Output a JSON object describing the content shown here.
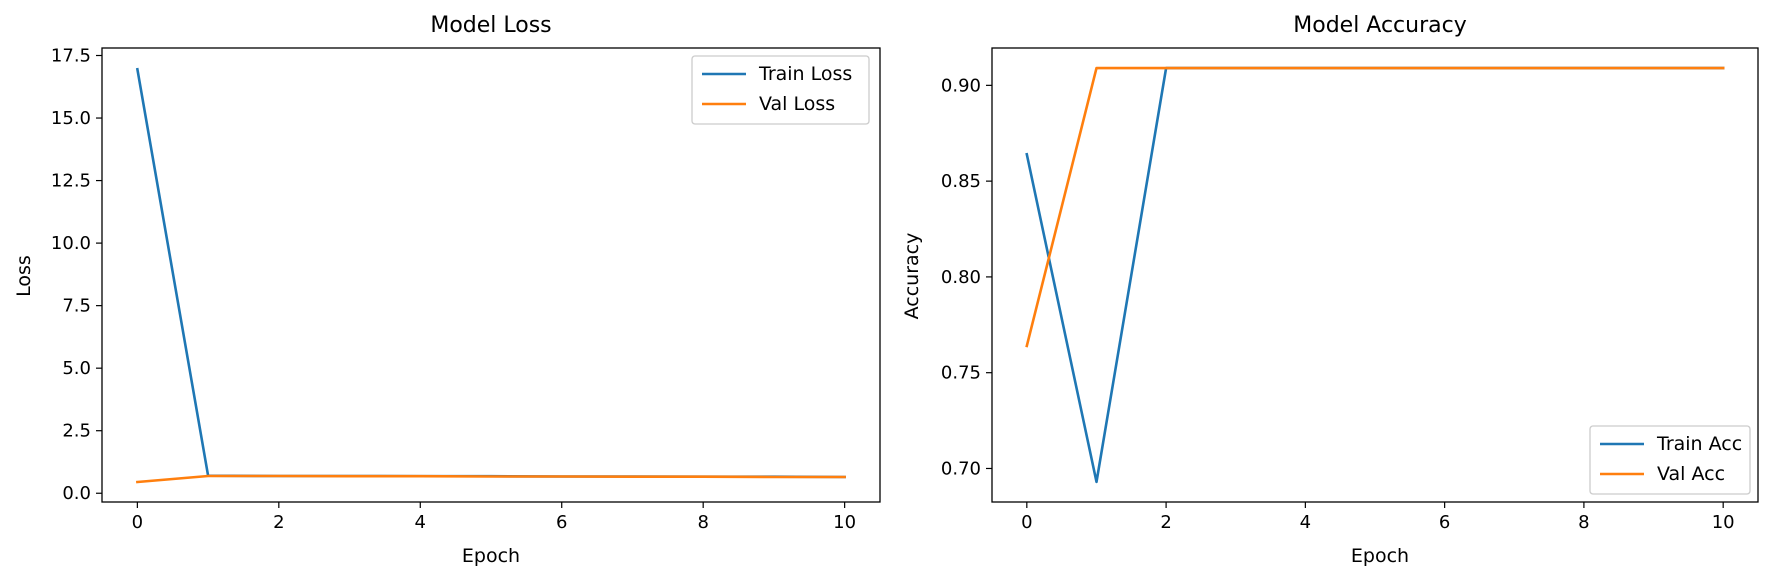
{
  "chart_data": [
    {
      "type": "line",
      "title": "Model Loss",
      "xlabel": "Epoch",
      "ylabel": "Loss",
      "x": [
        0,
        1,
        2,
        3,
        4,
        5,
        6,
        7,
        8,
        9,
        10
      ],
      "xlim": [
        -0.5,
        10.5
      ],
      "ylim": [
        -0.35,
        17.8
      ],
      "xticks": [
        0,
        2,
        4,
        6,
        8,
        10
      ],
      "yticks": [
        0.0,
        2.5,
        5.0,
        7.5,
        10.0,
        12.5,
        15.0,
        17.5
      ],
      "ytick_labels": [
        "0.0",
        "2.5",
        "5.0",
        "7.5",
        "10.0",
        "12.5",
        "15.0",
        "17.5"
      ],
      "grid": false,
      "legend": "upper right",
      "series": [
        {
          "name": "Train Loss",
          "color": "#1f77b4",
          "values": [
            16.95,
            0.7,
            0.69,
            0.69,
            0.68,
            0.68,
            0.67,
            0.67,
            0.66,
            0.66,
            0.65
          ]
        },
        {
          "name": "Val Loss",
          "color": "#ff7f0e",
          "values": [
            0.45,
            0.69,
            0.69,
            0.68,
            0.68,
            0.67,
            0.67,
            0.66,
            0.66,
            0.65,
            0.65
          ]
        }
      ]
    },
    {
      "type": "line",
      "title": "Model Accuracy",
      "xlabel": "Epoch",
      "ylabel": "Accuracy",
      "x": [
        0,
        1,
        2,
        3,
        4,
        5,
        6,
        7,
        8,
        9,
        10
      ],
      "xlim": [
        -0.5,
        10.5
      ],
      "ylim": [
        0.6825,
        0.9195
      ],
      "xticks": [
        0,
        2,
        4,
        6,
        8,
        10
      ],
      "yticks": [
        0.7,
        0.75,
        0.8,
        0.85,
        0.9
      ],
      "ytick_labels": [
        "0.70",
        "0.75",
        "0.80",
        "0.85",
        "0.90"
      ],
      "grid": false,
      "legend": "lower right",
      "series": [
        {
          "name": "Train Acc",
          "color": "#1f77b4",
          "values": [
            0.864,
            0.693,
            0.909,
            0.909,
            0.909,
            0.909,
            0.909,
            0.909,
            0.909,
            0.909,
            0.909
          ]
        },
        {
          "name": "Val Acc",
          "color": "#ff7f0e",
          "values": [
            0.764,
            0.909,
            0.909,
            0.909,
            0.909,
            0.909,
            0.909,
            0.909,
            0.909,
            0.909,
            0.909
          ]
        }
      ]
    }
  ]
}
